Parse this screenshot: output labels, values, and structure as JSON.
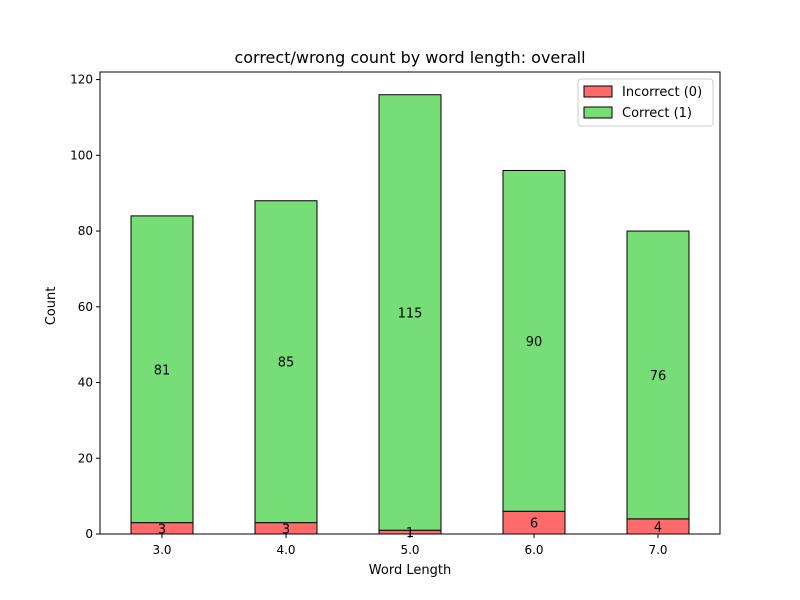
{
  "chart_data": {
    "type": "bar",
    "stacked": true,
    "title": "correct/wrong count by word length: overall",
    "xlabel": "Word Length",
    "ylabel": "Count",
    "categories": [
      "3.0",
      "4.0",
      "5.0",
      "6.0",
      "7.0"
    ],
    "ylim": [
      0,
      122
    ],
    "yticks": [
      0,
      20,
      40,
      60,
      80,
      100,
      120
    ],
    "grid": false,
    "legend_position": "top-right",
    "series": [
      {
        "name": "Incorrect (0)",
        "values": [
          3,
          3,
          1,
          6,
          4
        ],
        "color": "#ff6b6b"
      },
      {
        "name": "Correct (1)",
        "values": [
          81,
          85,
          115,
          90,
          76
        ],
        "color": "#77dd77"
      }
    ]
  }
}
